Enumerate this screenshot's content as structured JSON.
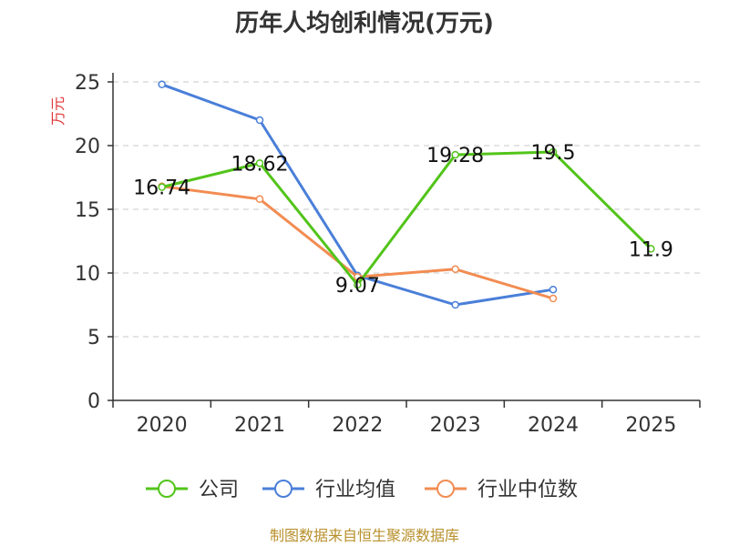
{
  "chart_data": {
    "type": "line",
    "title": "历年人均创利情况(万元)",
    "ylabel": "万元",
    "xlabel": "",
    "categories": [
      "2020",
      "2021",
      "2022",
      "2023",
      "2024",
      "2025"
    ],
    "ylim": [
      0,
      25
    ],
    "yticks": [
      0,
      5,
      10,
      15,
      20,
      25
    ],
    "grid": true,
    "legend_position": "bottom",
    "series": [
      {
        "name": "公司",
        "color": "#52c41a",
        "values": [
          16.74,
          18.62,
          9.07,
          19.28,
          19.5,
          11.9
        ],
        "labels": [
          "16.74",
          "18.62",
          "9.07",
          "19.28",
          "19.5",
          "11.9"
        ]
      },
      {
        "name": "行业均值",
        "color": "#4a7fd9",
        "values": [
          24.8,
          22.0,
          9.8,
          7.5,
          8.7,
          null
        ]
      },
      {
        "name": "行业中位数",
        "color": "#f28c52",
        "values": [
          16.8,
          15.8,
          9.7,
          10.3,
          8.0,
          null
        ]
      }
    ]
  },
  "source_text": "制图数据来自恒生聚源数据库"
}
